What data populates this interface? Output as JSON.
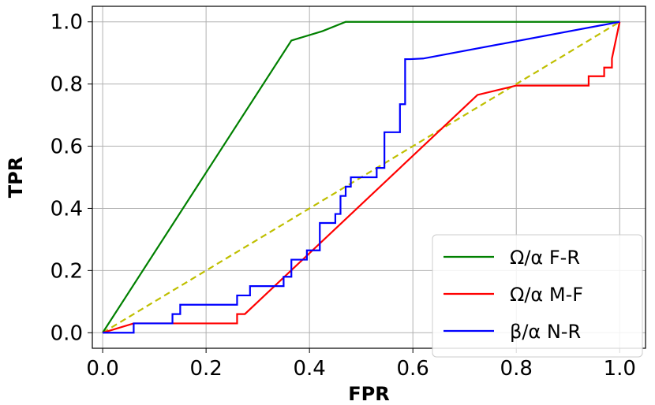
{
  "chart_data": {
    "type": "line",
    "title": "",
    "xlabel": "FPR",
    "ylabel": "TPR",
    "xlim": [
      -0.02,
      1.05
    ],
    "ylim": [
      -0.05,
      1.05
    ],
    "xticks": [
      "0.0",
      "0.2",
      "0.4",
      "0.6",
      "0.8",
      "1.0"
    ],
    "yticks": [
      "0.0",
      "0.2",
      "0.4",
      "0.6",
      "0.8",
      "1.0"
    ],
    "grid": true,
    "legend_position": "bottom-right",
    "series": [
      {
        "name": "Ω/α F-R",
        "color": "#008000",
        "x": [
          0.0,
          0.365,
          0.425,
          0.47,
          0.6,
          1.0
        ],
        "y": [
          0.0,
          0.94,
          0.97,
          1.0,
          1.0,
          1.0
        ]
      },
      {
        "name": "Ω/α M-F",
        "color": "#ff0000",
        "x": [
          0.0,
          0.06,
          0.06,
          0.26,
          0.26,
          0.275,
          0.725,
          0.8,
          0.94,
          0.94,
          0.97,
          0.97,
          0.985,
          0.985,
          1.0
        ],
        "y": [
          0.0,
          0.03,
          0.03,
          0.03,
          0.06,
          0.06,
          0.765,
          0.795,
          0.795,
          0.825,
          0.825,
          0.853,
          0.853,
          0.882,
          1.0
        ]
      },
      {
        "name": "β/α N-R",
        "color": "#0000ff",
        "x": [
          0.0,
          0.06,
          0.06,
          0.135,
          0.135,
          0.15,
          0.15,
          0.26,
          0.26,
          0.285,
          0.285,
          0.35,
          0.35,
          0.365,
          0.365,
          0.395,
          0.395,
          0.42,
          0.42,
          0.45,
          0.45,
          0.46,
          0.46,
          0.47,
          0.47,
          0.48,
          0.48,
          0.53,
          0.53,
          0.545,
          0.545,
          0.575,
          0.575,
          0.585,
          0.585,
          0.595,
          0.595,
          0.62,
          1.0
        ],
        "y": [
          0.0,
          0.0,
          0.03,
          0.03,
          0.06,
          0.06,
          0.09,
          0.09,
          0.12,
          0.12,
          0.15,
          0.15,
          0.18,
          0.18,
          0.235,
          0.235,
          0.265,
          0.265,
          0.353,
          0.353,
          0.382,
          0.382,
          0.44,
          0.44,
          0.47,
          0.47,
          0.5,
          0.5,
          0.53,
          0.53,
          0.645,
          0.645,
          0.735,
          0.735,
          0.88,
          0.88,
          0.88,
          0.882,
          1.0
        ]
      },
      {
        "name": "",
        "color": "#bfbf00",
        "dashed": true,
        "x": [
          0.0,
          1.0
        ],
        "y": [
          0.0,
          1.0
        ]
      }
    ]
  }
}
